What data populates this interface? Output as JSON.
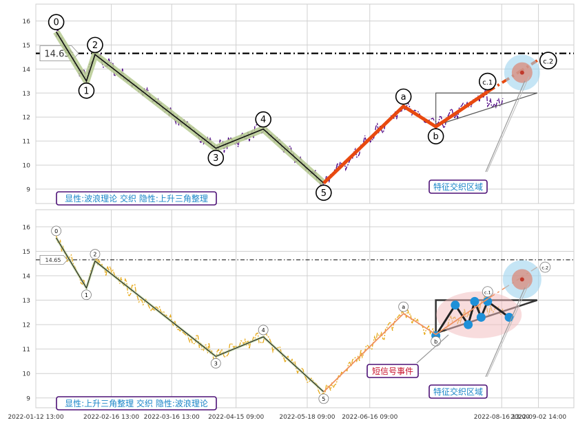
{
  "chart_data": [
    {
      "type": "line",
      "panel": "top",
      "ylim": [
        8.4,
        16.7
      ],
      "yticks": [
        9,
        10,
        11,
        12,
        13,
        14,
        15,
        16
      ],
      "reference_line": {
        "value": 14.65,
        "label": "14.65"
      },
      "price_color": "#4b0082",
      "wave_points": [
        {
          "label": "0",
          "date": "2022-01-22",
          "value": 15.55
        },
        {
          "label": "1",
          "date": "2022-02-05",
          "value": 13.5
        },
        {
          "label": "2",
          "date": "2022-02-09",
          "value": 14.6
        },
        {
          "label": "3",
          "date": "2022-04-06",
          "value": 10.7
        },
        {
          "label": "4",
          "date": "2022-04-28",
          "value": 11.5
        },
        {
          "label": "5",
          "date": "2022-05-26",
          "value": 9.25
        },
        {
          "label": "a",
          "date": "2022-07-02",
          "value": 12.45
        },
        {
          "label": "b",
          "date": "2022-07-17",
          "value": 11.6
        },
        {
          "label": "c.1",
          "date": "2022-08-10",
          "value": 13.05
        },
        {
          "label": "c.2",
          "date": "2022-09-02",
          "value": 14.35
        }
      ],
      "triangle": {
        "start_date": "2022-07-17",
        "end_date": "2022-09-02",
        "top": 13.0,
        "bottom_start": 11.65,
        "bottom_end": 13.0
      },
      "feature_label": "特征交织区域",
      "info_box": "显性:波浪理论 交织 隐性:上升三角整理"
    },
    {
      "type": "line",
      "panel": "bottom",
      "ylim": [
        8.6,
        16.7
      ],
      "yticks": [
        9,
        10,
        11,
        12,
        13,
        14,
        15,
        16
      ],
      "reference_line": {
        "value": 14.65,
        "label": "14.65"
      },
      "price_color": "#e6a817",
      "wave_points": [
        {
          "label": "0",
          "date": "2022-01-22",
          "value": 15.55
        },
        {
          "label": "1",
          "date": "2022-02-05",
          "value": 13.5
        },
        {
          "label": "2",
          "date": "2022-02-09",
          "value": 14.6
        },
        {
          "label": "3",
          "date": "2022-04-06",
          "value": 10.7
        },
        {
          "label": "4",
          "date": "2022-04-28",
          "value": 11.5
        },
        {
          "label": "5",
          "date": "2022-05-26",
          "value": 9.25
        },
        {
          "label": "a",
          "date": "2022-07-02",
          "value": 12.45
        },
        {
          "label": "b",
          "date": "2022-07-17",
          "value": 11.6
        },
        {
          "label": "c.1",
          "date": "2022-08-10",
          "value": 13.05
        },
        {
          "label": "c.2",
          "date": "2022-09-02",
          "value": 14.35
        }
      ],
      "triangle": {
        "start_date": "2022-07-17",
        "end_date": "2022-09-02",
        "top": 13.0,
        "bottom_start": 11.65,
        "bottom_end": 13.0
      },
      "signal_points": [
        {
          "date": "2022-07-17",
          "value": 11.55
        },
        {
          "date": "2022-07-26",
          "value": 12.8
        },
        {
          "date": "2022-08-01",
          "value": 12.0
        },
        {
          "date": "2022-08-04",
          "value": 12.95
        },
        {
          "date": "2022-08-07",
          "value": 12.3
        },
        {
          "date": "2022-08-10",
          "value": 12.95
        },
        {
          "date": "2022-08-20",
          "value": 12.3
        }
      ],
      "signal_label": "短信号事件",
      "feature_label": "特征交织区域",
      "info_box": "显性:上升三角整理 交织 隐性:波浪理论"
    }
  ],
  "x_axis": {
    "start": "2022-01-12 13:00",
    "end": "2022-09-19 00:00",
    "ticks": [
      {
        "date": "2022-01-12 13:00",
        "label": "2022-01-12 13:00"
      },
      {
        "date": "2022-02-16 13:00",
        "label": "2022-02-16 13:00"
      },
      {
        "date": "2022-03-16 13:00",
        "label": "2022-03-16 13:00"
      },
      {
        "date": "2022-04-15 09:00",
        "label": "2022-04-15 09:00"
      },
      {
        "date": "2022-05-18 09:00",
        "label": "2022-05-18 09:00"
      },
      {
        "date": "2022-06-16 09:00",
        "label": "2022-06-16 09:00"
      },
      {
        "date": "2022-08-16 13:00",
        "label": "2022-08-16 13:00"
      },
      {
        "date": "2022-09-02 14:00",
        "label": "2022-09-02 14:00"
      }
    ]
  },
  "colors": {
    "wave_upper_black": "#111111",
    "wave_highlight": "#b5c98f",
    "wave_abc": "#e8490f",
    "signal_blue": "#1e90d8",
    "label_text": "#1a86c8",
    "label_border": "#4b0f75",
    "signal_text": "#c8122d",
    "target_outer": "#9fd4ef",
    "target_inner": "#d98a7a"
  }
}
